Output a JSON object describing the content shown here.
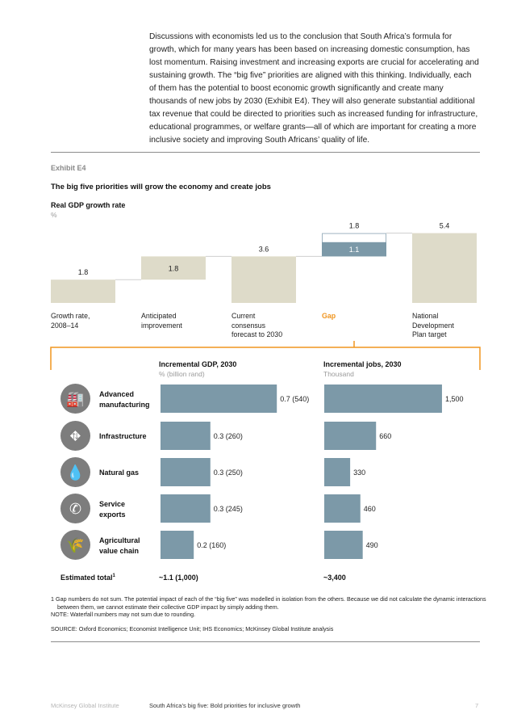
{
  "intro": {
    "text": "Discussions with economists led us to the conclusion that South Africa’s formula for growth, which for many years has been based on increasing domestic consumption, has lost momentum. Raising investment and increasing exports are crucial for accelerating and sustaining growth. The “big five” priorities are aligned with this thinking. Individually, each of them has the potential to boost economic growth significantly and create many thousands of new jobs by 2030 (Exhibit E4). They will also generate substantial additional tax revenue that could be directed to priorities such as increased funding for infrastructure, educational programmes, or welfare grants—all of which are important for creating a more inclusive society and improving South Africans’ quality of life."
  },
  "exhibit": {
    "label": "Exhibit E4",
    "title": "The big five priorities will grow the economy and create jobs"
  },
  "colors": {
    "beige": "#dedbc9",
    "steel": "#7c99a8",
    "orange": "#f0951f",
    "rule": "#8c8c8c",
    "icon": "#7d7d7d"
  },
  "chart_data": [
    {
      "type": "bar",
      "subtype": "waterfall",
      "title": "Real GDP growth rate",
      "unit": "%",
      "categories": [
        "Growth rate, 2008–14",
        "Anticipated improvement",
        "Current consensus forecast to 2030",
        "Gap",
        "National Development Plan target"
      ],
      "values": [
        1.8,
        1.8,
        3.6,
        1.8,
        5.4
      ],
      "value_labels": [
        "1.8",
        "1.8",
        "3.6",
        "1.8",
        "5.4"
      ],
      "gap_inner": {
        "value": 1.1,
        "label": "1.1"
      },
      "ylim": [
        0,
        5.4
      ],
      "grid": false
    },
    {
      "type": "bar",
      "orientation": "horizontal",
      "title": "Incremental GDP, 2030",
      "unit": "% (billion rand)",
      "categories": [
        "Advanced manufacturing",
        "Infrastructure",
        "Natural gas",
        "Service exports",
        "Agricultural value chain"
      ],
      "values": [
        0.7,
        0.3,
        0.3,
        0.3,
        0.2
      ],
      "secondary_values": [
        540,
        260,
        250,
        245,
        160
      ],
      "value_labels": [
        "0.7 (540)",
        "0.3 (260)",
        "0.3 (250)",
        "0.3 (245)",
        "0.2 (160)"
      ],
      "total": "~1.1 (1,000)"
    },
    {
      "type": "bar",
      "orientation": "horizontal",
      "title": "Incremental jobs, 2030",
      "unit": "Thousand",
      "categories": [
        "Advanced manufacturing",
        "Infrastructure",
        "Natural gas",
        "Service exports",
        "Agricultural value chain"
      ],
      "values": [
        1500,
        660,
        330,
        460,
        490
      ],
      "value_labels": [
        "1,500",
        "660",
        "330",
        "460",
        "490"
      ],
      "total": "~3,400"
    }
  ],
  "waterfall_labels": {
    "l0": "Growth rate,\n2008–14",
    "l1": "Anticipated\nimprovement",
    "l2": "Current\nconsensus\nforecast to 2030",
    "l3": "Gap",
    "l4": "National\nDevelopment\nPlan target"
  },
  "priorities": [
    {
      "label": "Advanced manufacturing",
      "icon": "factory-icon",
      "glyph": "🏭"
    },
    {
      "label": "Infrastructure",
      "icon": "road-icon",
      "glyph": "⛖"
    },
    {
      "label": "Natural gas",
      "icon": "gas-drop-icon",
      "glyph": "💧"
    },
    {
      "label": "Service exports",
      "icon": "phone-tools-icon",
      "glyph": "✆"
    },
    {
      "label": "Agricultural value chain",
      "icon": "wheat-icon",
      "glyph": "🌾"
    }
  ],
  "totals": {
    "label": "Estimated total",
    "sup": "1"
  },
  "notes": {
    "note1": "1  Gap numbers do not sum. The potential impact of each of the “big five” was modelled in isolation from the others. Because we did not calculate the dynamic interactions between them, we cannot estimate their collective GDP impact by simply adding them.",
    "note2": "NOTE: Waterfall numbers may not sum due to rounding.",
    "source": "SOURCE:  Oxford Economics; Economist Intelligence Unit; IHS Economics; McKinsey Global Institute analysis"
  },
  "footer": {
    "left": "McKinsey Global Institute",
    "center": "South Africa’s big five: Bold priorities for inclusive growth",
    "page": "7"
  }
}
